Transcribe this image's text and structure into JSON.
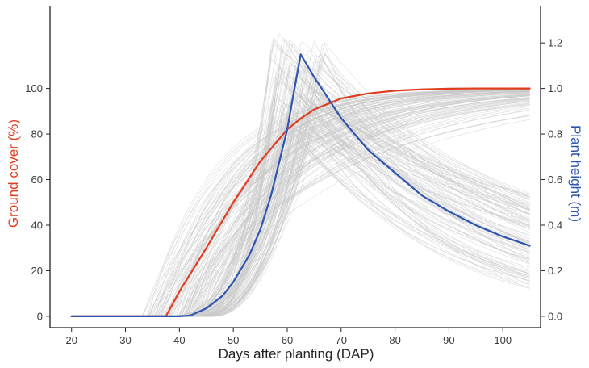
{
  "chart_data": {
    "type": "line",
    "xlabel": "Days after planting (DAP)",
    "ylabel_left": "Ground cover (%)",
    "ylabel_right": "Plant height (m)",
    "xlim": [
      16,
      107
    ],
    "ylim_left": [
      -5,
      136
    ],
    "ylim_right": [
      -0.05,
      1.36
    ],
    "x_ticks": [
      20,
      30,
      40,
      50,
      60,
      70,
      80,
      90,
      100
    ],
    "y_left_ticks": [
      0,
      20,
      40,
      60,
      80,
      100
    ],
    "y_right_ticks": [
      "0.0",
      "0.2",
      "0.4",
      "0.6",
      "0.8",
      "1.0",
      "1.2"
    ],
    "grid": false,
    "colors": {
      "ground_cover": "#e03c1f",
      "plant_height": "#2e55b0",
      "ensemble": "#c8c8c8",
      "axis": "#222222",
      "ground_cover_label": "#e03c1f",
      "plant_height_label": "#2e55b0"
    },
    "series": [
      {
        "axis": "left",
        "x": [
          20,
          37.5,
          40,
          45,
          50,
          55,
          60,
          62.5,
          65,
          70,
          75,
          80,
          85,
          90,
          95,
          100,
          105
        ],
        "values": [
          0,
          0,
          10.9,
          30,
          50,
          68,
          82,
          86.8,
          90.8,
          95.6,
          97.8,
          99.0,
          99.6,
          99.9,
          100,
          100,
          100
        ]
      },
      {
        "axis": "right",
        "x": [
          20,
          40,
          42,
          45,
          48,
          50,
          53,
          55,
          57,
          60,
          62.5,
          65,
          70,
          75,
          80,
          85,
          90,
          95,
          100,
          105
        ],
        "values": [
          0,
          0,
          0.003,
          0.035,
          0.09,
          0.15,
          0.27,
          0.38,
          0.53,
          0.82,
          1.15,
          1.05,
          0.87,
          0.73,
          0.63,
          0.53,
          0.46,
          0.4,
          0.35,
          0.31
        ]
      }
    ]
  }
}
